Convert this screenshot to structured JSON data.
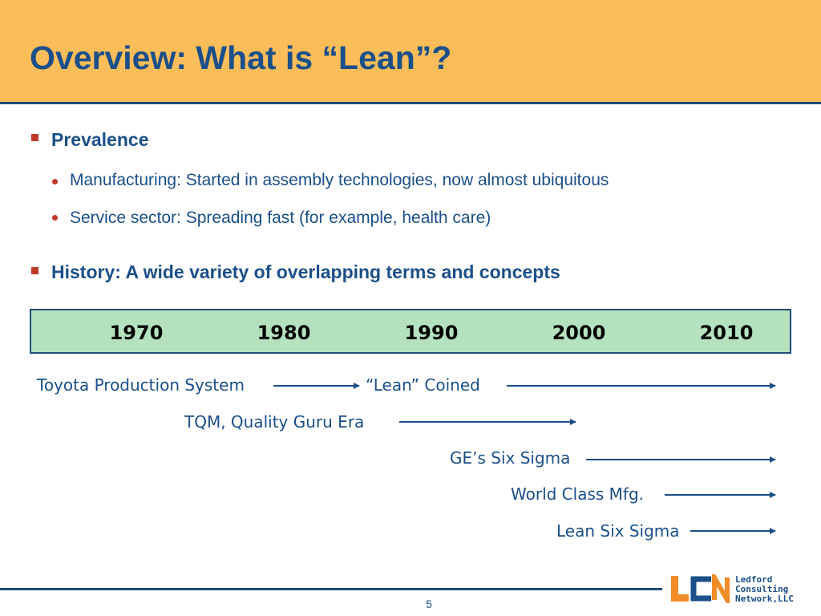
{
  "slide": {
    "title": "Overview:  What is “Lean”?",
    "page_number": "5"
  },
  "bullets": [
    {
      "label": "Prevalence",
      "sub": [
        "Manufacturing:  Started in assembly technologies, now almost ubiquitous",
        "Service sector:  Spreading fast (for example, health care)"
      ]
    },
    {
      "label": "History:  A wide variety of overlapping terms and concepts",
      "sub": []
    }
  ],
  "timeline": {
    "years": [
      "1970",
      "1980",
      "1990",
      "2000",
      "2010"
    ],
    "items": [
      {
        "label": "Toyota Production System"
      },
      {
        "label": "“Lean” Coined"
      },
      {
        "label": "TQM, Quality Guru Era"
      },
      {
        "label": "GE’s Six Sigma"
      },
      {
        "label": "World Class Mfg."
      },
      {
        "label": "Lean Six Sigma"
      }
    ]
  },
  "logo": {
    "mark": "LCN",
    "lines": [
      "Ledford",
      "Consulting",
      "Network,LLC"
    ]
  },
  "colors": {
    "header_bg": "#fbbd5a",
    "title": "#1b4f8a",
    "bullet": "#c0392b",
    "timeline_bg": "#b4e2bf",
    "rule": "#1f4e79"
  }
}
